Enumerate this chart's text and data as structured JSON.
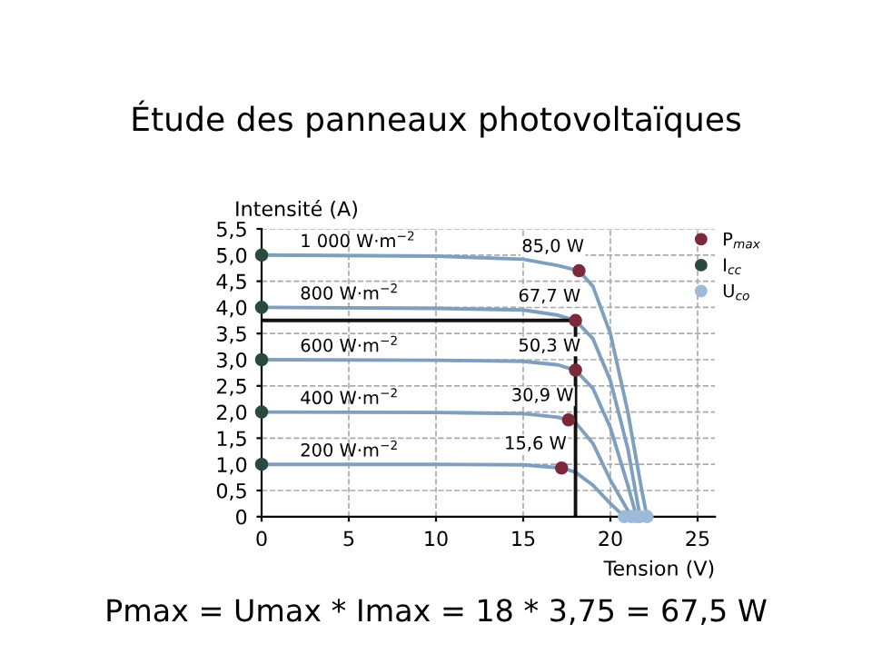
{
  "chart_data": {
    "type": "line",
    "title": "Étude des panneaux photovoltaïques",
    "xlabel": "Tension (V)",
    "ylabel": "Intensité (A)",
    "xlim": [
      0,
      26
    ],
    "ylim": [
      0,
      5.5
    ],
    "xticks": [
      0,
      5,
      10,
      15,
      20,
      25
    ],
    "yticks": [
      {
        "value": 0,
        "label": "0"
      },
      {
        "value": 0.5,
        "label": "0,5"
      },
      {
        "value": 1,
        "label": "1,0"
      },
      {
        "value": 1.5,
        "label": "1,5"
      },
      {
        "value": 2,
        "label": "2,0"
      },
      {
        "value": 2.5,
        "label": "2,5"
      },
      {
        "value": 3,
        "label": "3,0"
      },
      {
        "value": 3.5,
        "label": "3,5"
      },
      {
        "value": 4,
        "label": "4,0"
      },
      {
        "value": 4.5,
        "label": "4,5"
      },
      {
        "value": 5,
        "label": "5,0"
      },
      {
        "value": 5.5,
        "label": "5,5"
      }
    ],
    "grid": true,
    "legend": "top right",
    "marker": "none",
    "line_style": "solid",
    "series": [
      {
        "name": "1 000 W·m$^{−2}$",
        "color": "#7f9fbf",
        "x": [
          0,
          10,
          15,
          17,
          18.2,
          19,
          20,
          21,
          21.8,
          22.1
        ],
        "values": [
          5.0,
          4.98,
          4.92,
          4.8,
          4.7,
          4.4,
          3.5,
          2.0,
          0.5,
          0
        ]
      },
      {
        "name": "800 W·m$^{−2}$",
        "color": "#7f9fbf",
        "x": [
          0,
          10,
          15,
          17,
          18,
          19,
          20,
          21,
          21.7
        ],
        "values": [
          4.0,
          3.98,
          3.95,
          3.85,
          3.75,
          3.4,
          2.6,
          1.3,
          0
        ]
      },
      {
        "name": "600 W·m$^{−2}$",
        "color": "#7f9fbf",
        "x": [
          0,
          10,
          15,
          17,
          18,
          19,
          20,
          21,
          21.5
        ],
        "values": [
          3.0,
          2.99,
          2.97,
          2.9,
          2.8,
          2.45,
          1.7,
          0.6,
          0
        ]
      },
      {
        "name": "400 W·m$^{−2}$",
        "color": "#7f9fbf",
        "x": [
          0,
          10,
          15,
          17,
          18,
          19,
          20,
          21.2
        ],
        "values": [
          2.0,
          1.99,
          1.97,
          1.9,
          1.8,
          1.4,
          0.7,
          0
        ]
      },
      {
        "name": "200 W·m$^{−2}$",
        "color": "#7f9fbf",
        "x": [
          0,
          10,
          15,
          17.2,
          18,
          19,
          20,
          20.8
        ],
        "values": [
          1.0,
          1.0,
          0.99,
          0.93,
          0.85,
          0.6,
          0.25,
          0
        ]
      },
      {
        "color": "#111111",
        "x": [
          0,
          18,
          18
        ],
        "values": [
          3.75,
          3.75,
          0
        ]
      },
      {
        "name": "P$_{max}$",
        "type": "scatter",
        "marker": "circle",
        "color": "#7a2a3a",
        "x": [
          18.2,
          18,
          18,
          17.6,
          17.2
        ],
        "values": [
          4.7,
          3.75,
          2.8,
          1.85,
          0.93
        ]
      },
      {
        "name": "I$_{cc}$",
        "type": "scatter",
        "marker": "circle",
        "color": "#2a4a40",
        "x": [
          0,
          0,
          0,
          0,
          0
        ],
        "values": [
          5,
          4,
          3,
          2,
          1
        ]
      },
      {
        "name": "U$_{co}$",
        "type": "scatter",
        "marker": "circle",
        "color": "#9bbbd8",
        "x": [
          22.1,
          21.7,
          21.5,
          21.2,
          20.8
        ],
        "values": [
          0,
          0,
          0,
          0,
          0
        ]
      }
    ],
    "annotations": [
      {
        "text": "85,0 W",
        "x": 18.2,
        "y": 4.7
      },
      {
        "text": "67,7 W",
        "x": 18,
        "y": 3.75
      },
      {
        "text": "50,3 W",
        "x": 18,
        "y": 2.8
      },
      {
        "text": "30,9 W",
        "x": 17.6,
        "y": 1.85
      },
      {
        "text": "15,6 W",
        "x": 17.2,
        "y": 0.93
      },
      "Pmax = Umax * Imax = 18 * 3,75 = 67,5 W"
    ]
  }
}
